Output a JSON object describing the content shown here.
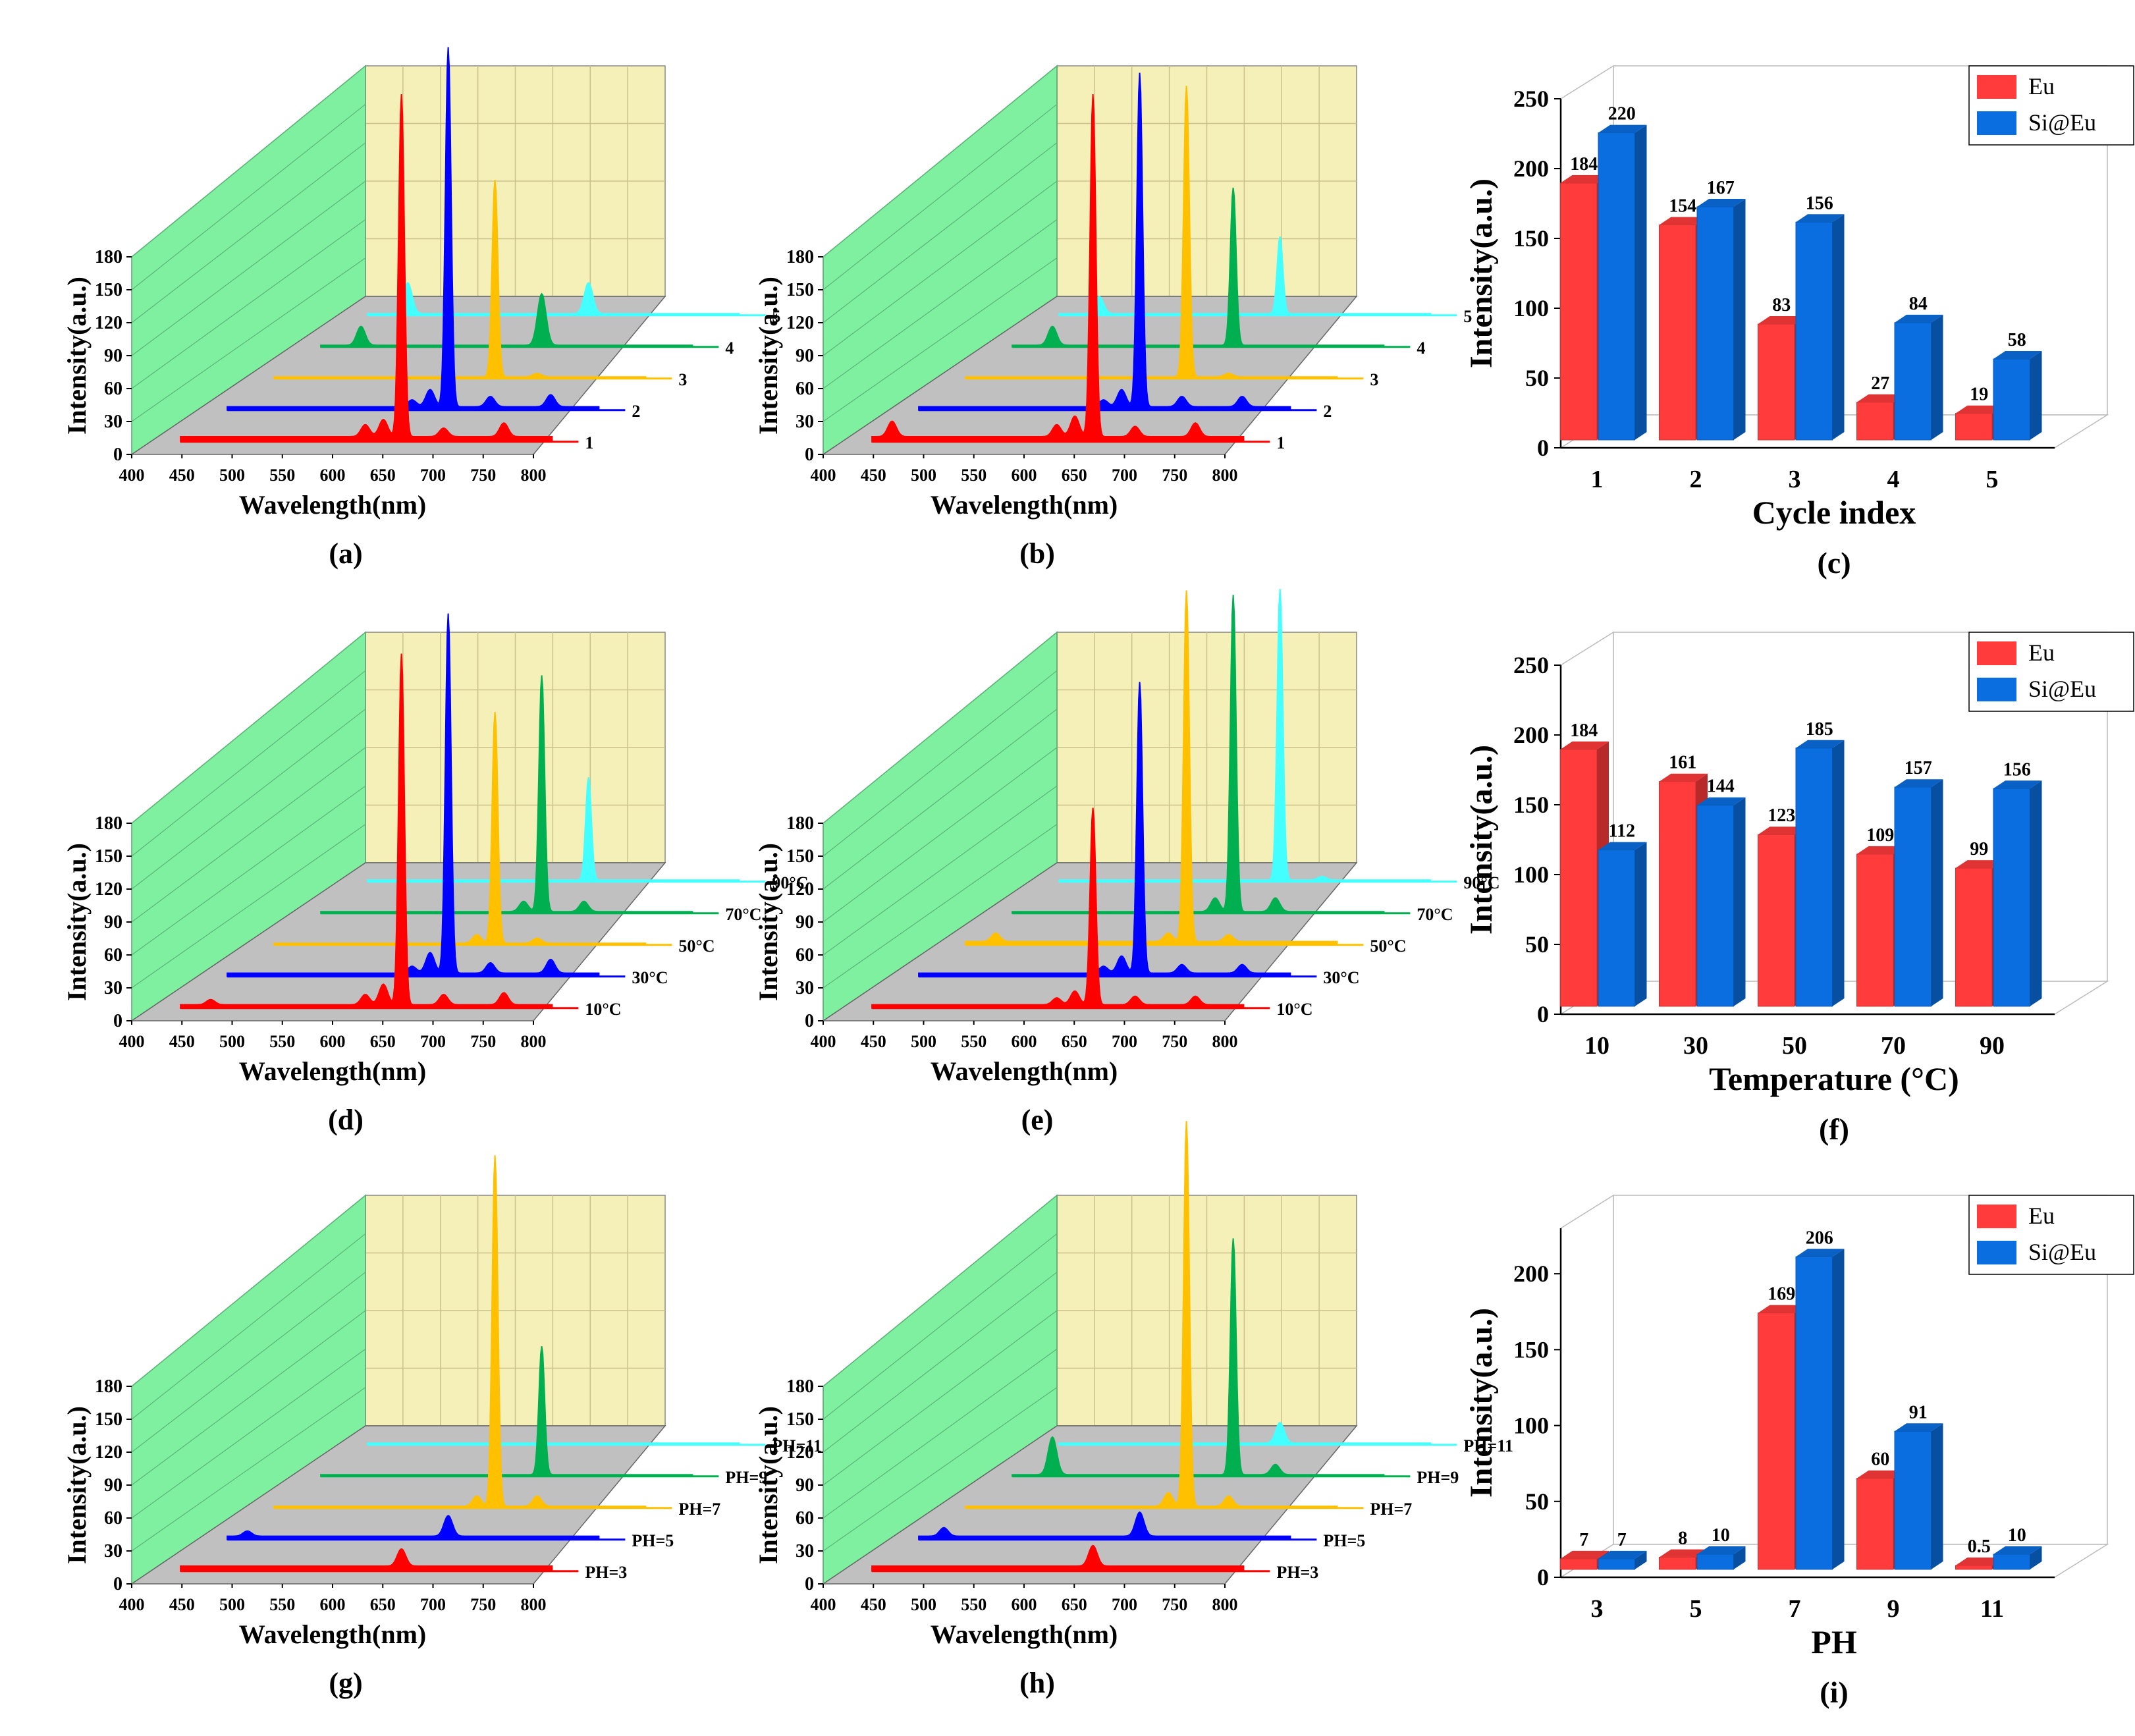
{
  "chart_data": [
    {
      "id": "a",
      "type": "waterfall",
      "panel_label": "(a)",
      "xlabel": "Wavelength(nm)",
      "ylabel": "Intensity(a.u.)",
      "xticks": [
        "400",
        "450",
        "500",
        "550",
        "600",
        "650",
        "700",
        "750",
        "800"
      ],
      "yticks": [
        "0",
        "30",
        "60",
        "90",
        "120",
        "150",
        "180"
      ],
      "xlim": [
        400,
        800
      ],
      "ylim": [
        0,
        180
      ],
      "series": [
        {
          "name": "1",
          "color": "#ff0000",
          "peaks": [
            [
              614,
              7
            ],
            [
              632,
              10
            ],
            [
              650,
              200
            ],
            [
              692,
              5
            ],
            [
              752,
              8
            ]
          ],
          "baseline": 3
        },
        {
          "name": "2",
          "color": "#0000ff",
          "peaks": [
            [
              614,
              4
            ],
            [
              632,
              10
            ],
            [
              650,
              210
            ],
            [
              692,
              6
            ],
            [
              752,
              7
            ]
          ],
          "baseline": 2
        },
        {
          "name": "3",
          "color": "#ffc000",
          "peaks": [
            [
              650,
              115
            ],
            [
              692,
              2
            ]
          ],
          "baseline": 1
        },
        {
          "name": "4",
          "color": "#00b050",
          "peaks": [
            [
              470,
              11
            ],
            [
              650,
              30
            ]
          ],
          "baseline": 1
        },
        {
          "name": "5",
          "color": "#44ffff",
          "peaks": [
            [
              470,
              18
            ],
            [
              650,
              18
            ]
          ],
          "baseline": 1
        }
      ]
    },
    {
      "id": "b",
      "type": "waterfall",
      "panel_label": "(b)",
      "xlabel": "Wavelength(nm)",
      "ylabel": "Intensity(a.u.)",
      "xticks": [
        "400",
        "450",
        "500",
        "550",
        "600",
        "650",
        "700",
        "750",
        "800"
      ],
      "yticks": [
        "0",
        "30",
        "60",
        "90",
        "120",
        "150",
        "180"
      ],
      "xlim": [
        400,
        800
      ],
      "ylim": [
        0,
        180
      ],
      "series": [
        {
          "name": "1",
          "color": "#ff0000",
          "peaks": [
            [
              450,
              9
            ],
            [
              614,
              7
            ],
            [
              632,
              12
            ],
            [
              650,
              200
            ],
            [
              692,
              6
            ],
            [
              752,
              8
            ]
          ],
          "baseline": 3
        },
        {
          "name": "2",
          "color": "#0000ff",
          "peaks": [
            [
              614,
              4
            ],
            [
              632,
              10
            ],
            [
              650,
              195
            ],
            [
              692,
              6
            ],
            [
              752,
              6
            ]
          ],
          "baseline": 2
        },
        {
          "name": "3",
          "color": "#ffc000",
          "peaks": [
            [
              650,
              170
            ],
            [
              692,
              2
            ]
          ],
          "baseline": 1
        },
        {
          "name": "4",
          "color": "#00b050",
          "peaks": [
            [
              470,
              11
            ],
            [
              650,
              92
            ]
          ],
          "baseline": 1
        },
        {
          "name": "5",
          "color": "#44ffff",
          "peaks": [
            [
              470,
              10
            ],
            [
              650,
              45
            ]
          ],
          "baseline": 1
        }
      ]
    },
    {
      "id": "c",
      "type": "bar3d",
      "panel_label": "(c)",
      "xlabel": "Cycle index",
      "ylabel": "Intensity(a.u.)",
      "categories": [
        "1",
        "2",
        "3",
        "4",
        "5"
      ],
      "yticks": [
        "0",
        "50",
        "100",
        "150",
        "200",
        "250"
      ],
      "ylim": [
        0,
        250
      ],
      "legend": {
        "position": "top-right"
      },
      "series": [
        {
          "name": "Eu",
          "color": "#ff3b3b",
          "values": [
            184,
            154,
            83,
            27,
            19
          ],
          "labels": [
            "184",
            "154",
            "83",
            "27",
            "19"
          ]
        },
        {
          "name": "Si@Eu",
          "color": "#0a6ee0",
          "values": [
            220,
            167,
            156,
            84,
            58
          ],
          "labels": [
            "220",
            "167",
            "156",
            "84",
            "58"
          ]
        }
      ]
    },
    {
      "id": "d",
      "type": "waterfall",
      "panel_label": "(d)",
      "xlabel": "Wavelength(nm)",
      "ylabel": "Intensity(a.u.)",
      "xticks": [
        "400",
        "450",
        "500",
        "550",
        "600",
        "650",
        "700",
        "750",
        "800"
      ],
      "yticks": [
        "0",
        "30",
        "60",
        "90",
        "120",
        "150",
        "180"
      ],
      "xlim": [
        400,
        800
      ],
      "ylim": [
        0,
        180
      ],
      "series": [
        {
          "name": "10°C",
          "color": "#ff0000",
          "peaks": [
            [
              460,
              3
            ],
            [
              614,
              6
            ],
            [
              632,
              12
            ],
            [
              650,
              205
            ],
            [
              692,
              6
            ],
            [
              752,
              7
            ]
          ],
          "baseline": 2
        },
        {
          "name": "30°C",
          "color": "#0000ff",
          "peaks": [
            [
              614,
              4
            ],
            [
              632,
              12
            ],
            [
              650,
              210
            ],
            [
              692,
              6
            ],
            [
              752,
              8
            ]
          ],
          "baseline": 2
        },
        {
          "name": "50°C",
          "color": "#ffc000",
          "peaks": [
            [
              632,
              5
            ],
            [
              650,
              135
            ],
            [
              692,
              3
            ]
          ],
          "baseline": 1
        },
        {
          "name": "70°C",
          "color": "#00b050",
          "peaks": [
            [
              632,
              6
            ],
            [
              650,
              138
            ],
            [
              692,
              6
            ]
          ],
          "baseline": 1
        },
        {
          "name": "90°C",
          "color": "#44ffff",
          "peaks": [
            [
              650,
              60
            ]
          ],
          "baseline": 1
        }
      ]
    },
    {
      "id": "e",
      "type": "waterfall",
      "panel_label": "(e)",
      "xlabel": "Wavelength(nm)",
      "ylabel": "Intensity(a.u.)",
      "xticks": [
        "400",
        "450",
        "500",
        "550",
        "600",
        "650",
        "700",
        "750",
        "800"
      ],
      "yticks": [
        "0",
        "30",
        "60",
        "90",
        "120",
        "150",
        "180"
      ],
      "xlim": [
        400,
        800
      ],
      "ylim": [
        0,
        180
      ],
      "series": [
        {
          "name": "10°C",
          "color": "#ff0000",
          "peaks": [
            [
              614,
              4
            ],
            [
              632,
              8
            ],
            [
              650,
              115
            ],
            [
              692,
              5
            ],
            [
              752,
              5
            ]
          ],
          "baseline": 2
        },
        {
          "name": "30°C",
          "color": "#0000ff",
          "peaks": [
            [
              614,
              4
            ],
            [
              632,
              10
            ],
            [
              650,
              170
            ],
            [
              692,
              5
            ],
            [
              752,
              5
            ]
          ],
          "baseline": 2
        },
        {
          "name": "50°C",
          "color": "#ffc000",
          "peaks": [
            [
              460,
              5
            ],
            [
              632,
              5
            ],
            [
              650,
              205
            ],
            [
              692,
              4
            ]
          ],
          "baseline": 2
        },
        {
          "name": "70°C",
          "color": "#00b050",
          "peaks": [
            [
              632,
              8
            ],
            [
              650,
              185
            ],
            [
              692,
              8
            ]
          ],
          "baseline": 1
        },
        {
          "name": "90°C",
          "color": "#44ffff",
          "peaks": [
            [
              650,
              170
            ],
            [
              692,
              2
            ]
          ],
          "baseline": 1
        }
      ]
    },
    {
      "id": "f",
      "type": "bar3d",
      "panel_label": "(f)",
      "xlabel": "Temperature (°C)",
      "ylabel": "Intensity(a.u.)",
      "categories": [
        "10",
        "30",
        "50",
        "70",
        "90"
      ],
      "yticks": [
        "0",
        "50",
        "100",
        "150",
        "200",
        "250"
      ],
      "ylim": [
        0,
        250
      ],
      "legend": {
        "position": "top-right"
      },
      "series": [
        {
          "name": "Eu",
          "color": "#ff3b3b",
          "values": [
            184,
            161,
            123,
            109,
            99
          ],
          "labels": [
            "184",
            "161",
            "123",
            "109",
            "99"
          ]
        },
        {
          "name": "Si@Eu",
          "color": "#0a6ee0",
          "values": [
            112,
            144,
            185,
            157,
            156
          ],
          "labels": [
            "112",
            "144",
            "185",
            "157",
            "156"
          ]
        }
      ]
    },
    {
      "id": "g",
      "type": "waterfall",
      "panel_label": "(g)",
      "xlabel": "Wavelength(nm)",
      "ylabel": "Intensity(a.u.)",
      "xticks": [
        "400",
        "450",
        "500",
        "550",
        "600",
        "650",
        "700",
        "750",
        "800"
      ],
      "yticks": [
        "0",
        "30",
        "60",
        "90",
        "120",
        "150",
        "180"
      ],
      "xlim": [
        400,
        800
      ],
      "ylim": [
        0,
        180
      ],
      "series": [
        {
          "name": "PH=3",
          "color": "#ff0000",
          "peaks": [
            [
              650,
              10
            ]
          ],
          "baseline": 3
        },
        {
          "name": "PH=5",
          "color": "#0000ff",
          "peaks": [
            [
              450,
              3
            ],
            [
              650,
              12
            ]
          ],
          "baseline": 2
        },
        {
          "name": "PH=7",
          "color": "#ffc000",
          "peaks": [
            [
              632,
              6
            ],
            [
              650,
              205
            ],
            [
              692,
              6
            ]
          ],
          "baseline": 1
        },
        {
          "name": "PH=9",
          "color": "#00b050",
          "peaks": [
            [
              650,
              75
            ]
          ],
          "baseline": 1
        },
        {
          "name": "PH=11",
          "color": "#44ffff",
          "peaks": [],
          "baseline": 1
        }
      ]
    },
    {
      "id": "h",
      "type": "waterfall",
      "panel_label": "(h)",
      "xlabel": "Wavelength(nm)",
      "ylabel": "Intensity(a.u.)",
      "xticks": [
        "400",
        "450",
        "500",
        "550",
        "600",
        "650",
        "700",
        "750",
        "800"
      ],
      "yticks": [
        "0",
        "30",
        "60",
        "90",
        "120",
        "150",
        "180"
      ],
      "xlim": [
        400,
        800
      ],
      "ylim": [
        0,
        180
      ],
      "series": [
        {
          "name": "PH=3",
          "color": "#ff0000",
          "peaks": [
            [
              650,
              12
            ]
          ],
          "baseline": 3
        },
        {
          "name": "PH=5",
          "color": "#0000ff",
          "peaks": [
            [
              455,
              5
            ],
            [
              650,
              14
            ]
          ],
          "baseline": 2
        },
        {
          "name": "PH=7",
          "color": "#ffc000",
          "peaks": [
            [
              632,
              8
            ],
            [
              650,
              225
            ],
            [
              692,
              6
            ]
          ],
          "baseline": 1
        },
        {
          "name": "PH=9",
          "color": "#00b050",
          "peaks": [
            [
              470,
              22
            ],
            [
              650,
              138
            ],
            [
              692,
              6
            ]
          ],
          "baseline": 1
        },
        {
          "name": "PH=11",
          "color": "#44ffff",
          "peaks": [
            [
              650,
              12
            ]
          ],
          "baseline": 1
        }
      ]
    },
    {
      "id": "i",
      "type": "bar3d",
      "panel_label": "(i)",
      "xlabel": "PH",
      "ylabel": "Intensity(a.u.)",
      "categories": [
        "3",
        "5",
        "7",
        "9",
        "11"
      ],
      "yticks": [
        "0",
        "50",
        "100",
        "150",
        "200"
      ],
      "ylim": [
        0,
        230
      ],
      "legend": {
        "position": "top-right"
      },
      "series": [
        {
          "name": "Eu",
          "color": "#ff3b3b",
          "values": [
            7,
            8,
            169,
            60,
            0.5
          ],
          "labels": [
            "7",
            "8",
            "169",
            "60",
            "0.5"
          ]
        },
        {
          "name": "Si@Eu",
          "color": "#0a6ee0",
          "values": [
            7,
            10,
            206,
            91,
            10
          ],
          "labels": [
            "7",
            "10",
            "206",
            "91",
            "10"
          ]
        }
      ]
    }
  ]
}
